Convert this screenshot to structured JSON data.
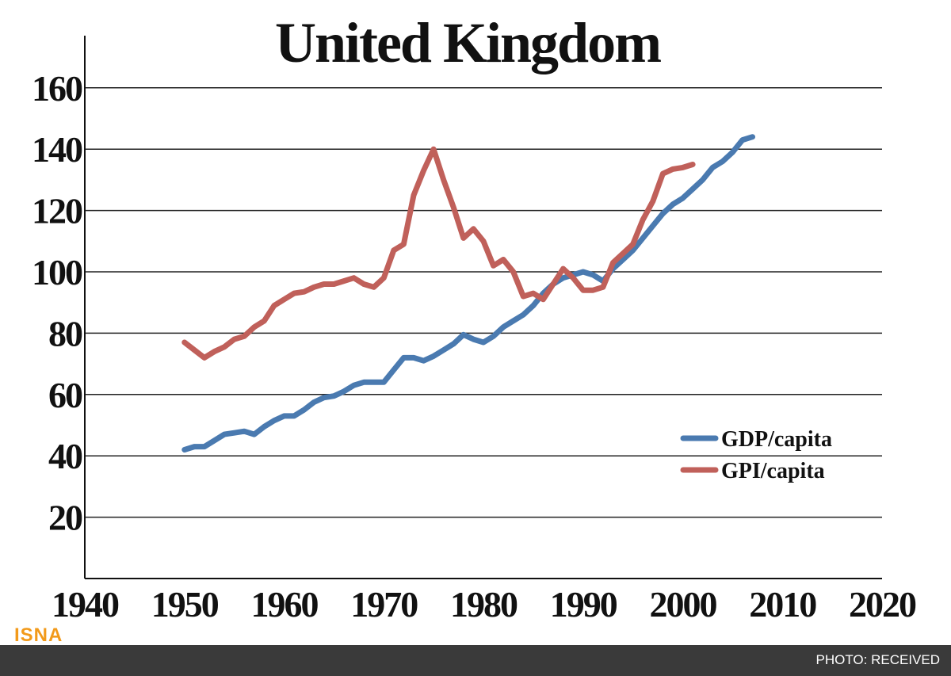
{
  "chart_data": {
    "type": "line",
    "title": "United Kingdom",
    "xlim": [
      1940,
      2020
    ],
    "ylim": [
      0,
      170
    ],
    "x_ticks": [
      1940,
      1950,
      1960,
      1970,
      1980,
      1990,
      2000,
      2010,
      2020
    ],
    "y_ticks": [
      20,
      40,
      60,
      80,
      100,
      120,
      140,
      160
    ],
    "grid": "horizontal",
    "legend_position": "right-middle",
    "series": [
      {
        "name": "GDP/capita",
        "color": "#4a7ab0",
        "x": [
          1950,
          1951,
          1952,
          1953,
          1954,
          1955,
          1956,
          1957,
          1958,
          1959,
          1960,
          1961,
          1962,
          1963,
          1964,
          1965,
          1966,
          1967,
          1968,
          1969,
          1970,
          1971,
          1972,
          1973,
          1974,
          1975,
          1976,
          1977,
          1978,
          1979,
          1980,
          1981,
          1982,
          1983,
          1984,
          1985,
          1986,
          1987,
          1988,
          1989,
          1990,
          1991,
          1992,
          1993,
          1994,
          1995,
          1996,
          1997,
          1998,
          1999,
          2000,
          2001,
          2002,
          2003,
          2004,
          2005,
          2006,
          2007
        ],
        "y": [
          42,
          43,
          43,
          45,
          47,
          47.5,
          48,
          47,
          49.5,
          51.5,
          53,
          53,
          55,
          57.5,
          59,
          59.5,
          61,
          63,
          64,
          64,
          64,
          68,
          72,
          72,
          71,
          72.5,
          74.5,
          76.5,
          79.5,
          78,
          77,
          79,
          82,
          84,
          86,
          89,
          93,
          96,
          98,
          99,
          100,
          99,
          97,
          101,
          104,
          107,
          111,
          115,
          119,
          122,
          124,
          127,
          130,
          134,
          136,
          139,
          143,
          144
        ]
      },
      {
        "name": "GPI/capita",
        "color": "#c0605a",
        "x": [
          1950,
          1951,
          1952,
          1953,
          1954,
          1955,
          1956,
          1957,
          1958,
          1959,
          1960,
          1961,
          1962,
          1963,
          1964,
          1965,
          1966,
          1967,
          1968,
          1969,
          1970,
          1971,
          1972,
          1973,
          1974,
          1975,
          1976,
          1977,
          1978,
          1979,
          1980,
          1981,
          1982,
          1983,
          1984,
          1985,
          1986,
          1987,
          1988,
          1989,
          1990,
          1991,
          1992,
          1993,
          1994,
          1995,
          1996,
          1997,
          1998,
          1999,
          2000,
          2001
        ],
        "y": [
          77,
          74.5,
          72,
          74,
          75.5,
          78,
          79,
          82,
          84,
          89,
          91,
          93,
          93.5,
          95,
          96,
          96,
          97,
          98,
          96,
          95,
          98,
          107,
          109,
          125,
          133,
          140,
          130,
          121,
          111,
          114,
          110,
          102,
          104,
          100,
          92,
          93,
          91,
          96,
          101,
          98,
          94,
          94,
          95,
          103,
          106,
          109,
          117,
          123,
          132,
          133.5,
          134,
          135
        ]
      }
    ]
  },
  "footer": {
    "credit": "PHOTO: RECEIVED",
    "logo": "ISNA"
  }
}
